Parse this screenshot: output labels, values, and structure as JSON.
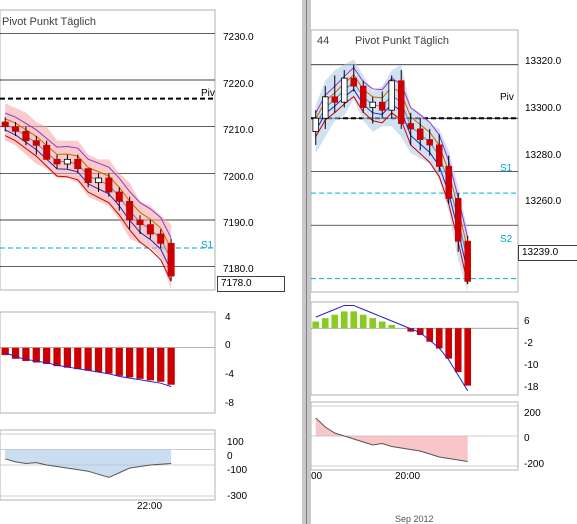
{
  "left_chart": {
    "title": "Pivot Punkt  Täglich",
    "price_ticks": [
      "7230.0",
      "7220.0",
      "7210.0",
      "7200.0",
      "7190.0",
      "7180.0"
    ],
    "last_price": "7178.0",
    "pivot_label": "Piv",
    "s1_label": "S1",
    "macd_ticks": [
      "4",
      "0",
      "-4",
      "-8"
    ],
    "cci_ticks": [
      "100",
      "0",
      "-100",
      "-300"
    ],
    "time_label": "22:00"
  },
  "right_chart": {
    "title_prefix": "44",
    "title": "Pivot Punkt  Täglich",
    "price_ticks": [
      "13320.0",
      "13300.0",
      "13280.0",
      "13260.0"
    ],
    "last_price": "13239.0",
    "pivot_label": "Piv",
    "s1_label": "S1",
    "s2_label": "S2",
    "macd_ticks": [
      "6",
      "-2",
      "-10",
      "-18"
    ],
    "cci_ticks": [
      "200",
      "0",
      "-200"
    ],
    "time_label_a": "00",
    "time_label_b": "20:00",
    "bottom_label": "Sep 2012"
  },
  "colors": {
    "bull": "#000000",
    "bear": "#cc0000",
    "cloud_red": "#f4a0a0",
    "cloud_blue": "#a9c8e8",
    "macd_green": "#88cc22",
    "macd_red": "#cc0000",
    "signal": "#2222cc",
    "pivot_cyan": "#00aacc"
  },
  "chart_data": [
    {
      "type": "line",
      "title": "Pivot Punkt  Täglich",
      "ylim": [
        7175,
        7235
      ],
      "price_ticks": [
        7230,
        7220,
        7210,
        7200,
        7190,
        7180
      ],
      "last_price": 7178.0,
      "levels": {
        "Piv": 7216,
        "S1": 7184
      },
      "candles": [
        [
          7211,
          7212,
          7209,
          7210
        ],
        [
          7210,
          7211,
          7208,
          7209
        ],
        [
          7209,
          7210,
          7206,
          7207
        ],
        [
          7207,
          7208,
          7204,
          7206
        ],
        [
          7206,
          7207,
          7203,
          7203
        ],
        [
          7203,
          7204,
          7201,
          7202
        ],
        [
          7202,
          7204,
          7201,
          7203
        ],
        [
          7203,
          7204,
          7200,
          7201
        ],
        [
          7201,
          7201,
          7197,
          7198
        ],
        [
          7198,
          7200,
          7196,
          7199
        ],
        [
          7199,
          7200,
          7195,
          7196
        ],
        [
          7196,
          7197,
          7192,
          7194
        ],
        [
          7194,
          7195,
          7188,
          7190
        ],
        [
          7190,
          7191,
          7187,
          7189
        ],
        [
          7189,
          7190,
          7186,
          7187
        ],
        [
          7187,
          7188,
          7184,
          7185
        ],
        [
          7185,
          7186,
          7177,
          7178
        ]
      ],
      "macd_ticks": [
        4,
        0,
        -4,
        -8
      ],
      "macd_hist": [
        -1,
        -1.5,
        -1.8,
        -2,
        -2.2,
        -2.5,
        -2.7,
        -2.9,
        -3.1,
        -3.3,
        -3.5,
        -3.8,
        -4,
        -4.2,
        -4.4,
        -4.6,
        -5
      ],
      "cci_ticks": [
        100,
        0,
        -100,
        -300
      ],
      "cci": [
        -60,
        -80,
        -90,
        -85,
        -100,
        -110,
        -120,
        -130,
        -140,
        -160,
        -180,
        -150,
        -120,
        -110,
        -100,
        -95,
        -90
      ],
      "x_tick_labels": [
        "22:00"
      ]
    },
    {
      "type": "line",
      "title": "Pivot Punkt  Täglich",
      "ylim": [
        13235,
        13333
      ],
      "price_ticks": [
        13320,
        13300,
        13280,
        13260
      ],
      "last_price": 13239.0,
      "levels": {
        "Piv": 13300,
        "S1": 13272,
        "S2": 13240
      },
      "candles": [
        [
          13295,
          13303,
          13290,
          13300
        ],
        [
          13300,
          13312,
          13296,
          13308
        ],
        [
          13308,
          13316,
          13302,
          13306
        ],
        [
          13306,
          13318,
          13304,
          13315
        ],
        [
          13315,
          13320,
          13310,
          13312
        ],
        [
          13312,
          13314,
          13302,
          13304
        ],
        [
          13304,
          13308,
          13298,
          13306
        ],
        [
          13306,
          13310,
          13300,
          13303
        ],
        [
          13303,
          13316,
          13300,
          13314
        ],
        [
          13314,
          13318,
          13296,
          13298
        ],
        [
          13298,
          13302,
          13290,
          13296
        ],
        [
          13296,
          13300,
          13288,
          13292
        ],
        [
          13292,
          13296,
          13286,
          13290
        ],
        [
          13290,
          13294,
          13280,
          13282
        ],
        [
          13282,
          13286,
          13268,
          13270
        ],
        [
          13270,
          13272,
          13250,
          13254
        ],
        [
          13254,
          13256,
          13238,
          13239
        ]
      ],
      "macd_ticks": [
        6,
        -2,
        -10,
        -18
      ],
      "macd_hist": [
        2,
        3,
        4,
        5,
        5,
        4,
        3,
        2,
        1,
        0,
        -1,
        -2,
        -4,
        -6,
        -9,
        -13,
        -17
      ],
      "cci_ticks": [
        200,
        0,
        -200
      ],
      "cci": [
        120,
        60,
        20,
        0,
        -20,
        -40,
        -60,
        -50,
        -70,
        -80,
        -90,
        -100,
        -120,
        -140,
        -150,
        -160,
        -170
      ],
      "x_tick_labels": [
        "00",
        "20:00"
      ]
    }
  ]
}
